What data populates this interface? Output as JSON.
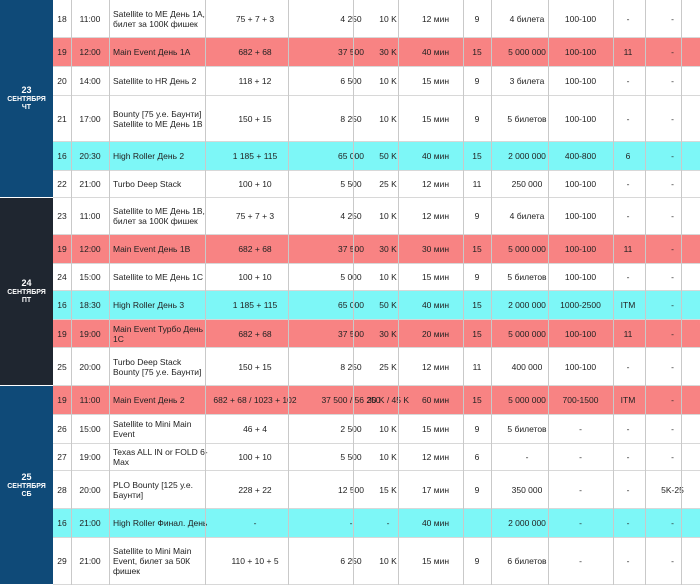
{
  "days": [
    {
      "num": "23",
      "month": "СЕНТЯБРЯ",
      "weekday": "ЧТ"
    },
    {
      "num": "24",
      "month": "СЕНТЯБРЯ",
      "weekday": "ПТ"
    },
    {
      "num": "25",
      "month": "СЕНТЯБРЯ",
      "weekday": "СБ"
    }
  ],
  "rows": [
    {
      "id": "18",
      "time": "11:00",
      "name": "Satellite to ME День 1А, билет за 100К фишек",
      "buyin": "75 + 7 + 3",
      "stack": "4 250",
      "blinds": "10 K",
      "level": "12 мин",
      "late": "9",
      "guarantee": "4 билета",
      "seats": "100-100",
      "reentry": "-",
      "bounty": "-",
      "hl": ""
    },
    {
      "id": "19",
      "time": "12:00",
      "name": "Main Event День 1А",
      "buyin": "682 + 68",
      "stack": "37 500",
      "blinds": "30 K",
      "level": "40 мин",
      "late": "15",
      "guarantee": "5 000 000",
      "seats": "100-100",
      "reentry": "11",
      "bounty": "-",
      "hl": "red"
    },
    {
      "id": "20",
      "time": "14:00",
      "name": "Satellite to HR День 2",
      "buyin": "118 + 12",
      "stack": "6 500",
      "blinds": "10 K",
      "level": "15 мин",
      "late": "9",
      "guarantee": "3 билета",
      "seats": "100-100",
      "reentry": "-",
      "bounty": "-",
      "hl": ""
    },
    {
      "id": "21",
      "time": "17:00",
      "name": "Bounty [75 у.е. Баунти] Satellite to ME День 1В",
      "buyin": "150 + 15",
      "stack": "8 250",
      "blinds": "10 K",
      "level": "15 мин",
      "late": "9",
      "guarantee": "5 билетов",
      "seats": "100-100",
      "reentry": "-",
      "bounty": "-",
      "hl": ""
    },
    {
      "id": "16",
      "time": "20:30",
      "name": "High Roller День 2",
      "buyin": "1 185 + 115",
      "stack": "65 000",
      "blinds": "50 K",
      "level": "40 мин",
      "late": "15",
      "guarantee": "2 000 000",
      "seats": "400-800",
      "reentry": "6",
      "bounty": "-",
      "hl": "cyan"
    },
    {
      "id": "22",
      "time": "21:00",
      "name": "Turbo Deep Stack",
      "buyin": "100 + 10",
      "stack": "5 500",
      "blinds": "25 K",
      "level": "12 мин",
      "late": "11",
      "guarantee": "250 000",
      "seats": "100-100",
      "reentry": "-",
      "bounty": "-",
      "hl": ""
    },
    {
      "id": "23",
      "time": "11:00",
      "name": "Satellite to ME День 1В, билет за 100К фишек",
      "buyin": "75 + 7 + 3",
      "stack": "4 250",
      "blinds": "10 K",
      "level": "12 мин",
      "late": "9",
      "guarantee": "4 билета",
      "seats": "100-100",
      "reentry": "-",
      "bounty": "-",
      "hl": ""
    },
    {
      "id": "19",
      "time": "12:00",
      "name": "Main Event День 1В",
      "buyin": "682 + 68",
      "stack": "37 500",
      "blinds": "30 K",
      "level": "30 мин",
      "late": "15",
      "guarantee": "5 000 000",
      "seats": "100-100",
      "reentry": "11",
      "bounty": "-",
      "hl": "red"
    },
    {
      "id": "24",
      "time": "15:00",
      "name": "Satellite to ME День 1С",
      "buyin": "100 + 10",
      "stack": "5 000",
      "blinds": "10 K",
      "level": "15 мин",
      "late": "9",
      "guarantee": "5 билетов",
      "seats": "100-100",
      "reentry": "-",
      "bounty": "-",
      "hl": ""
    },
    {
      "id": "16",
      "time": "18:30",
      "name": "High Roller День 3",
      "buyin": "1 185 + 115",
      "stack": "65 000",
      "blinds": "50 K",
      "level": "40 мин",
      "late": "15",
      "guarantee": "2 000 000",
      "seats": "1000-2500",
      "reentry": "ITM",
      "bounty": "-",
      "hl": "cyan"
    },
    {
      "id": "19",
      "time": "19:00",
      "name": "Main Event Турбо День 1С",
      "buyin": "682 + 68",
      "stack": "37 500",
      "blinds": "30 K",
      "level": "20 мин",
      "late": "15",
      "guarantee": "5 000 000",
      "seats": "100-100",
      "reentry": "11",
      "bounty": "-",
      "hl": "red"
    },
    {
      "id": "25",
      "time": "20:00",
      "name": "Turbo Deep Stack Bounty [75 у.е. Баунти]",
      "buyin": "150 + 15",
      "stack": "8 250",
      "blinds": "25 K",
      "level": "12 мин",
      "late": "11",
      "guarantee": "400 000",
      "seats": "100-100",
      "reentry": "-",
      "bounty": "-",
      "hl": ""
    },
    {
      "id": "19",
      "time": "11:00",
      "name": "Main Event День 2",
      "buyin": "682 + 68 / 1023 + 102",
      "stack": "37 500 / 56 250",
      "blinds": "30 K / 45 K",
      "level": "60 мин",
      "late": "15",
      "guarantee": "5 000 000",
      "seats": "700-1500",
      "reentry": "ITM",
      "bounty": "-",
      "hl": "red"
    },
    {
      "id": "26",
      "time": "15:00",
      "name": "Satellite to Mini Main Event",
      "buyin": "46 + 4",
      "stack": "2 500",
      "blinds": "10 K",
      "level": "15 мин",
      "late": "9",
      "guarantee": "5 билетов",
      "seats": "-",
      "reentry": "-",
      "bounty": "-",
      "hl": ""
    },
    {
      "id": "27",
      "time": "19:00",
      "name": "Texas ALL IN or FOLD 6-Max",
      "buyin": "100 + 10",
      "stack": "5 500",
      "blinds": "10 K",
      "level": "12 мин",
      "late": "6",
      "guarantee": "-",
      "seats": "-",
      "reentry": "-",
      "bounty": "-",
      "hl": ""
    },
    {
      "id": "28",
      "time": "20:00",
      "name": "PLO Bounty [125 у.е. Баунти]",
      "buyin": "228 + 22",
      "stack": "12 500",
      "blinds": "15 K",
      "level": "17 мин",
      "late": "9",
      "guarantee": "350 000",
      "seats": "-",
      "reentry": "-",
      "bounty": "5K-25",
      "hl": ""
    },
    {
      "id": "16",
      "time": "21:00",
      "name": "High Roller Финал. День",
      "buyin": "-",
      "stack": "-",
      "blinds": "-",
      "level": "40 мин",
      "late": "",
      "guarantee": "2 000 000",
      "seats": "-",
      "reentry": "-",
      "bounty": "-",
      "hl": "cyan"
    },
    {
      "id": "29",
      "time": "21:00",
      "name": "Satellite to Mini Main Event, билет за 50К фишек",
      "buyin": "110 + 10 + 5",
      "stack": "6 250",
      "blinds": "10 K",
      "level": "15 мин",
      "late": "9",
      "guarantee": "6 билетов",
      "seats": "-",
      "reentry": "-",
      "bounty": "-",
      "hl": ""
    }
  ]
}
